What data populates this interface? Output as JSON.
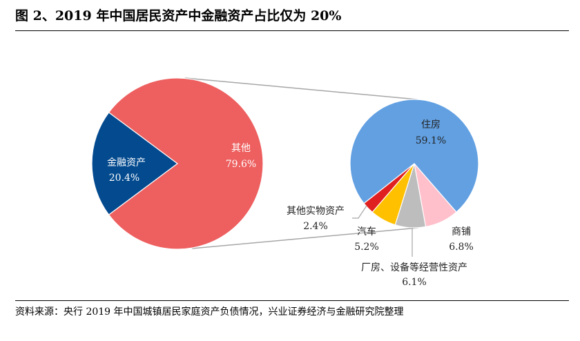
{
  "title": "图 2、2019 年中国居民资产中金融资产占比仅为 20%",
  "source": "资料来源：央行 2019 年中国城镇居民家庭资产负债情况，兴业证券经济与金融研究院整理",
  "chart_data": {
    "type": "pie",
    "subtype": "pie-of-pie",
    "main": {
      "slices": [
        {
          "name": "金融资产",
          "value": 20.4,
          "label": "20.4%",
          "color": "#034A8F"
        },
        {
          "name": "其他",
          "value": 79.6,
          "label": "79.6%",
          "color": "#EE5F5F"
        }
      ]
    },
    "secondary": {
      "parent": "其他",
      "slices": [
        {
          "name": "住房",
          "value": 59.1,
          "label": "59.1%",
          "color": "#62A0E2"
        },
        {
          "name": "商铺",
          "value": 6.8,
          "label": "6.8%",
          "color": "#FFBFCB"
        },
        {
          "name": "厂房、设备等经营性资产",
          "value": 6.1,
          "label": "6.1%",
          "color": "#BDBDBD"
        },
        {
          "name": "汽车",
          "value": 5.2,
          "label": "5.2%",
          "color": "#FFC000"
        },
        {
          "name": "其他实物资产",
          "value": 2.4,
          "label": "2.4%",
          "color": "#E02020"
        }
      ]
    }
  }
}
